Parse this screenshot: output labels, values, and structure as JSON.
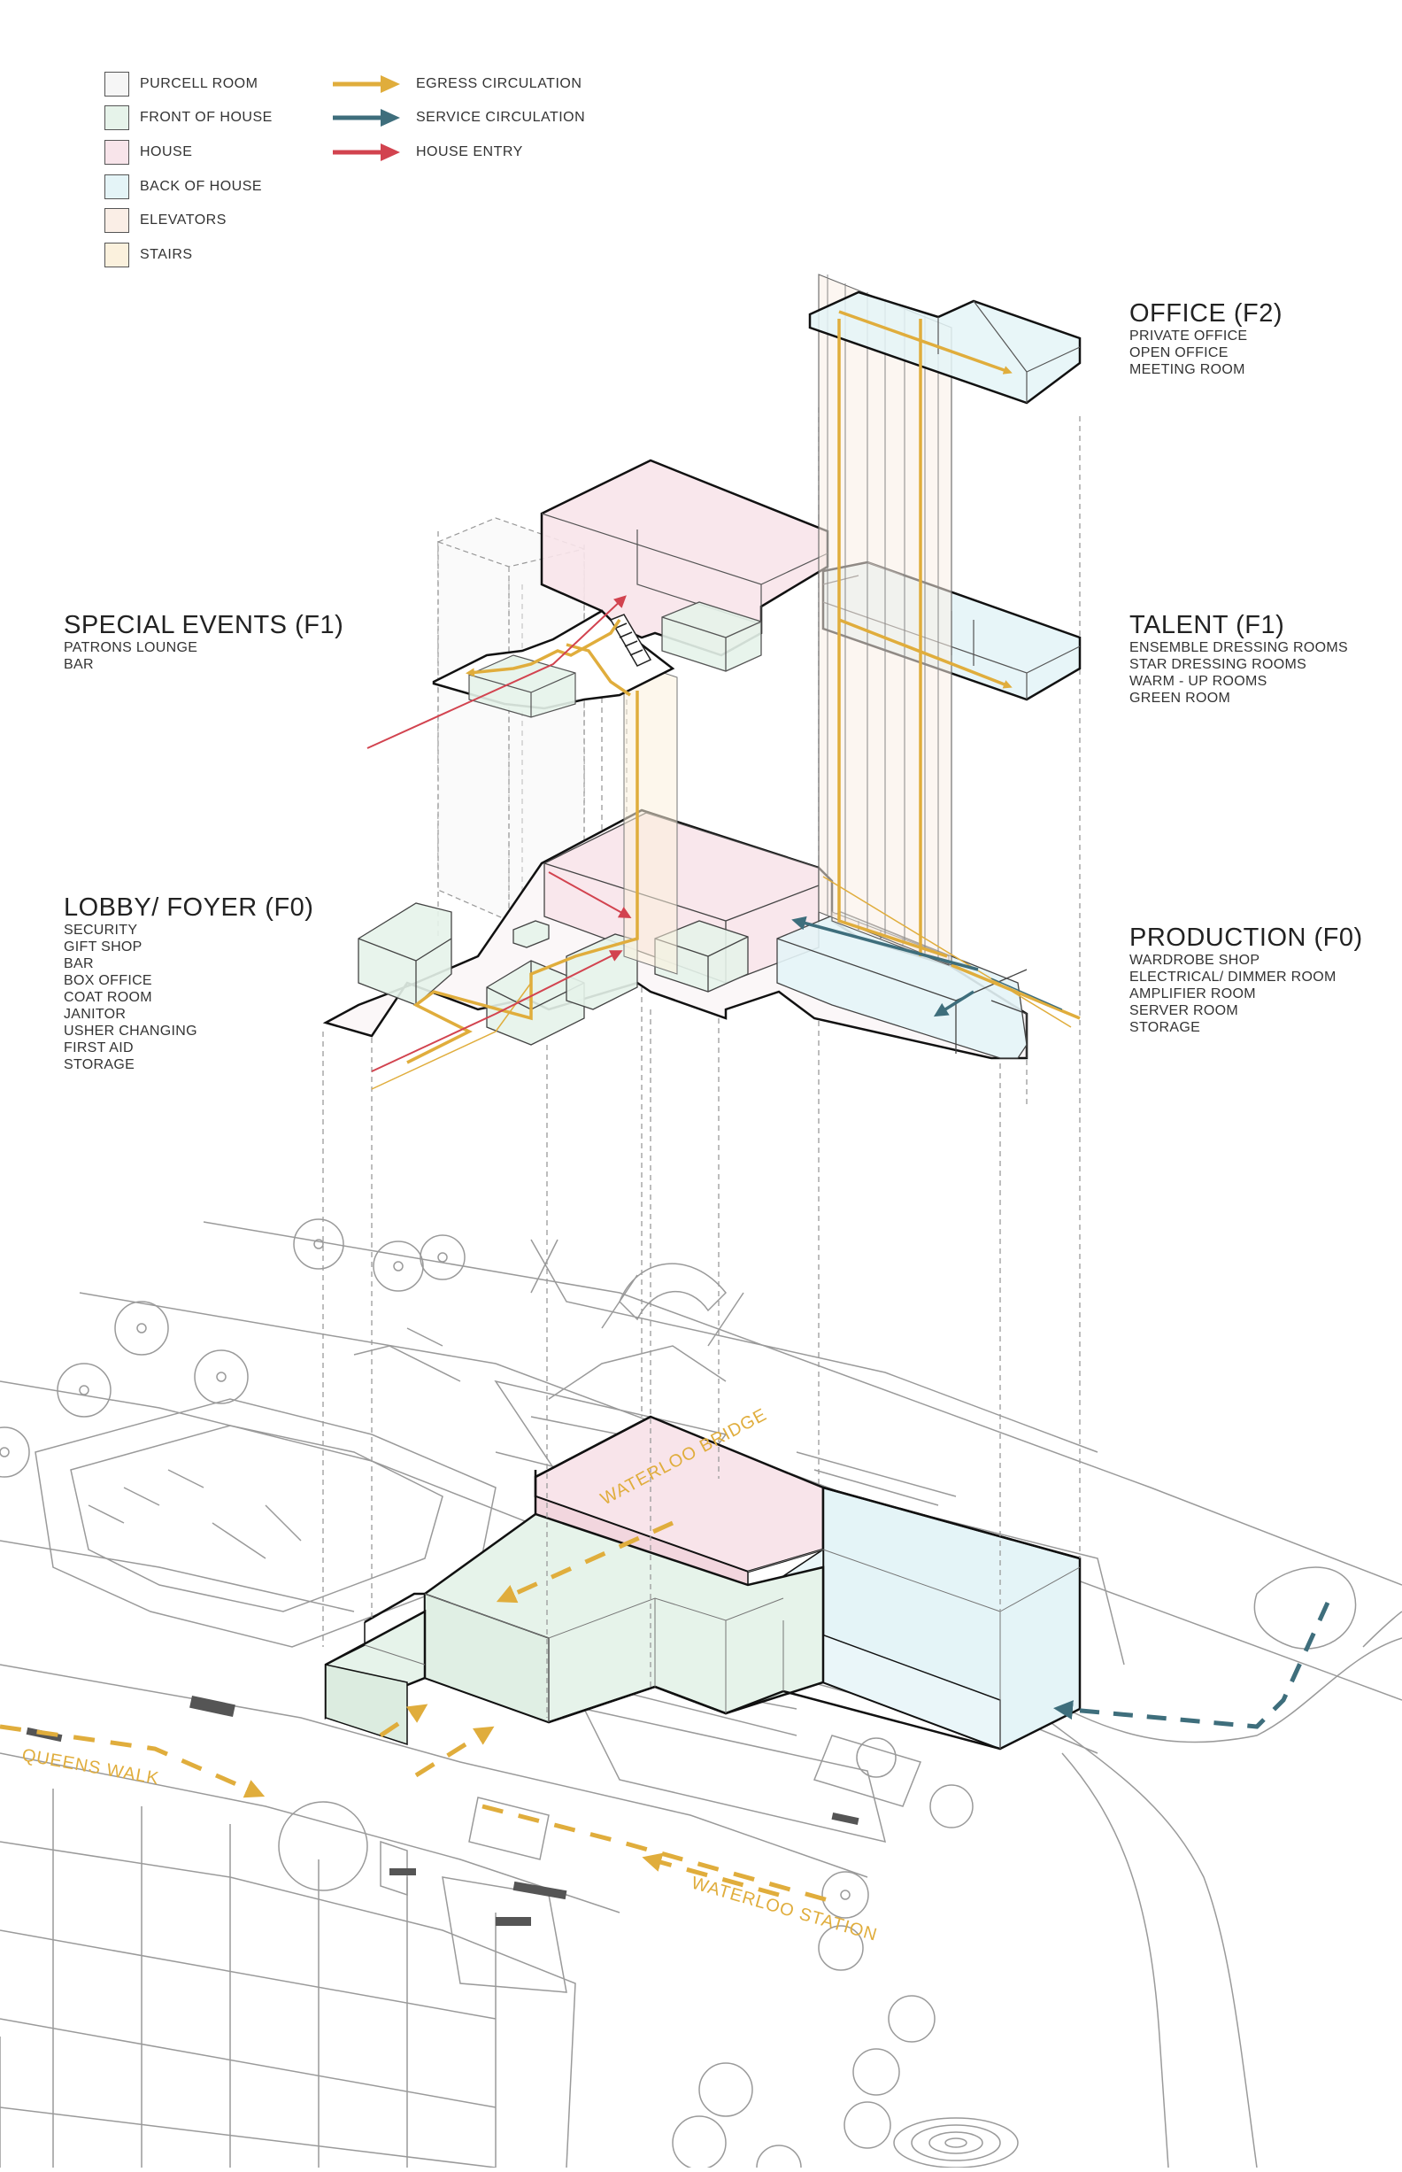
{
  "legend": {
    "spaces": [
      {
        "label": "PURCELL ROOM",
        "color": "#f6f6f6"
      },
      {
        "label": "FRONT OF HOUSE",
        "color": "#e6f3ea"
      },
      {
        "label": "HOUSE",
        "color": "#f8e4ea"
      },
      {
        "label": "BACK OF HOUSE",
        "color": "#e4f4f7"
      },
      {
        "label": "ELEVATORS",
        "color": "#faeee6"
      },
      {
        "label": "STAIRS",
        "color": "#fbf1dd"
      }
    ],
    "circulation": [
      {
        "label": "EGRESS CIRCULATION",
        "color": "#e0ad3c"
      },
      {
        "label": "SERVICE CIRCULATION",
        "color": "#3e6e7c"
      },
      {
        "label": "HOUSE ENTRY",
        "color": "#d2434f"
      }
    ]
  },
  "floors": {
    "office": {
      "title": "OFFICE (F2)",
      "items": [
        "PRIVATE OFFICE",
        "OPEN OFFICE",
        "MEETING ROOM"
      ]
    },
    "special_events": {
      "title": "SPECIAL EVENTS (F1)",
      "items": [
        "PATRONS LOUNGE",
        "BAR"
      ]
    },
    "talent": {
      "title": "TALENT (F1)",
      "items": [
        "ENSEMBLE DRESSING ROOMS",
        "STAR DRESSING ROOMS",
        "WARM - UP ROOMS",
        "GREEN ROOM"
      ]
    },
    "lobby": {
      "title": "LOBBY/ FOYER (F0)",
      "items": [
        "SECURITY",
        "GIFT SHOP",
        "BAR",
        "BOX OFFICE",
        "COAT ROOM",
        "JANITOR",
        "USHER CHANGING",
        "FIRST AID",
        "STORAGE"
      ]
    },
    "production": {
      "title": "PRODUCTION (F0)",
      "items": [
        "WARDROBE SHOP",
        "ELECTRICAL/ DIMMER ROOM",
        "AMPLIFIER ROOM",
        "SERVER ROOM",
        "STORAGE"
      ]
    }
  },
  "site_labels": {
    "bridge": "WATERLOO BRIDGE",
    "queens_walk": "QUEENS WALK",
    "station": "WATERLOO STATION"
  }
}
